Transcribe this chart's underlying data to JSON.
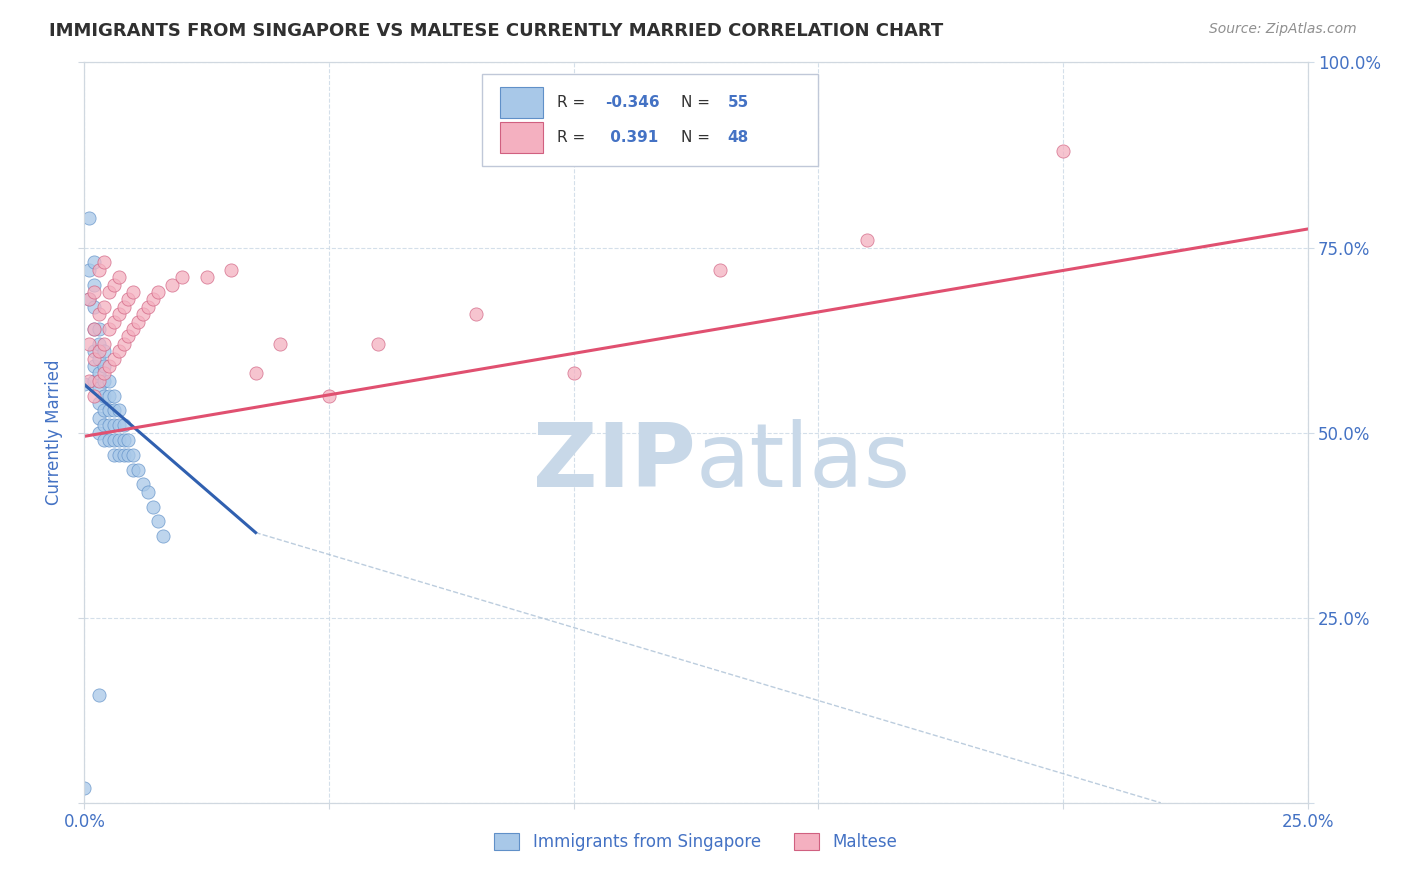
{
  "title": "IMMIGRANTS FROM SINGAPORE VS MALTESE CURRENTLY MARRIED CORRELATION CHART",
  "source_text": "Source: ZipAtlas.com",
  "xlabel_bottom": "Immigrants from Singapore",
  "ylabel_left": "Currently Married",
  "xlim": [
    0.0,
    0.25
  ],
  "ylim": [
    0.0,
    1.0
  ],
  "x_ticks": [
    0.0,
    0.05,
    0.1,
    0.15,
    0.2,
    0.25
  ],
  "y_ticks": [
    0.0,
    0.25,
    0.5,
    0.75,
    1.0
  ],
  "x_tick_labels": [
    "0.0%",
    "",
    "",
    "",
    "",
    "25.0%"
  ],
  "y_tick_labels_right": [
    "",
    "25.0%",
    "50.0%",
    "75.0%",
    "100.0%"
  ],
  "blue_color": "#a8c8e8",
  "pink_color": "#f4b0c0",
  "blue_edge_color": "#6090c8",
  "pink_edge_color": "#d06080",
  "blue_line_color": "#3060b0",
  "pink_line_color": "#e05070",
  "title_color": "#303030",
  "source_color": "#909090",
  "tick_color": "#4472c4",
  "grid_color": "#d0dce8",
  "watermark_color": "#c8d8e8",
  "background_color": "#ffffff",
  "blue_regression": {
    "x": [
      0.0,
      0.035
    ],
    "y": [
      0.565,
      0.365
    ]
  },
  "pink_regression": {
    "x": [
      0.0,
      0.25
    ],
    "y": [
      0.495,
      0.775
    ]
  },
  "dashed_line": {
    "x": [
      0.035,
      0.22
    ],
    "y": [
      0.365,
      0.0
    ]
  },
  "blue_scatter_x": [
    0.0,
    0.001,
    0.001,
    0.001,
    0.002,
    0.002,
    0.002,
    0.002,
    0.002,
    0.002,
    0.002,
    0.003,
    0.003,
    0.003,
    0.003,
    0.003,
    0.003,
    0.003,
    0.003,
    0.004,
    0.004,
    0.004,
    0.004,
    0.004,
    0.004,
    0.004,
    0.005,
    0.005,
    0.005,
    0.005,
    0.005,
    0.006,
    0.006,
    0.006,
    0.006,
    0.006,
    0.007,
    0.007,
    0.007,
    0.007,
    0.008,
    0.008,
    0.008,
    0.009,
    0.009,
    0.01,
    0.01,
    0.011,
    0.012,
    0.013,
    0.014,
    0.015,
    0.016,
    0.0,
    0.003
  ],
  "blue_scatter_y": [
    0.565,
    0.79,
    0.72,
    0.68,
    0.73,
    0.7,
    0.67,
    0.64,
    0.61,
    0.59,
    0.57,
    0.64,
    0.62,
    0.6,
    0.58,
    0.56,
    0.54,
    0.52,
    0.5,
    0.61,
    0.59,
    0.57,
    0.55,
    0.53,
    0.51,
    0.49,
    0.57,
    0.55,
    0.53,
    0.51,
    0.49,
    0.55,
    0.53,
    0.51,
    0.49,
    0.47,
    0.53,
    0.51,
    0.49,
    0.47,
    0.51,
    0.49,
    0.47,
    0.49,
    0.47,
    0.47,
    0.45,
    0.45,
    0.43,
    0.42,
    0.4,
    0.38,
    0.36,
    0.02,
    0.145
  ],
  "pink_scatter_x": [
    0.001,
    0.001,
    0.001,
    0.002,
    0.002,
    0.002,
    0.002,
    0.003,
    0.003,
    0.003,
    0.003,
    0.004,
    0.004,
    0.004,
    0.004,
    0.005,
    0.005,
    0.005,
    0.006,
    0.006,
    0.006,
    0.007,
    0.007,
    0.007,
    0.008,
    0.008,
    0.009,
    0.009,
    0.01,
    0.01,
    0.011,
    0.012,
    0.013,
    0.014,
    0.015,
    0.018,
    0.02,
    0.025,
    0.03,
    0.035,
    0.04,
    0.05,
    0.06,
    0.08,
    0.1,
    0.13,
    0.16,
    0.2
  ],
  "pink_scatter_y": [
    0.57,
    0.62,
    0.68,
    0.55,
    0.6,
    0.64,
    0.69,
    0.57,
    0.61,
    0.66,
    0.72,
    0.58,
    0.62,
    0.67,
    0.73,
    0.59,
    0.64,
    0.69,
    0.6,
    0.65,
    0.7,
    0.61,
    0.66,
    0.71,
    0.62,
    0.67,
    0.63,
    0.68,
    0.64,
    0.69,
    0.65,
    0.66,
    0.67,
    0.68,
    0.69,
    0.7,
    0.71,
    0.71,
    0.72,
    0.58,
    0.62,
    0.55,
    0.62,
    0.66,
    0.58,
    0.72,
    0.76,
    0.88
  ]
}
